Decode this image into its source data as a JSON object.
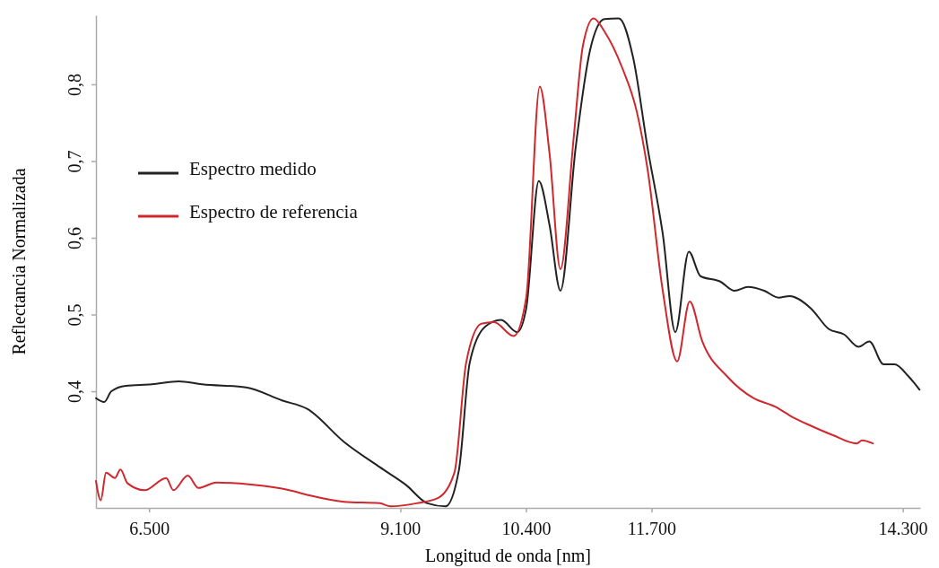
{
  "chart_data": {
    "type": "line",
    "xlabel": "Longitud de onda [nm]",
    "ylabel": "Reflectancia Normalizada",
    "xlim": [
      5950,
      14480
    ],
    "xticks": [
      {
        "value": 6500,
        "label": "6.500"
      },
      {
        "value": 9100,
        "label": "9.100"
      },
      {
        "value": 10400,
        "label": "10.400"
      },
      {
        "value": 11700,
        "label": "11.700"
      },
      {
        "value": 14300,
        "label": "14.300"
      }
    ],
    "ylim": [
      0.248,
      0.89
    ],
    "yticks": [
      {
        "value": 0.4,
        "label": "0,4"
      },
      {
        "value": 0.5,
        "label": "0,5"
      },
      {
        "value": 0.6,
        "label": "0,6"
      },
      {
        "value": 0.7,
        "label": "0,7"
      },
      {
        "value": 0.8,
        "label": "0,8"
      }
    ],
    "grid": false,
    "legend": "top left",
    "marker": "none",
    "line_style": "solid",
    "series": [
      {
        "name": "Espectro medido",
        "color": "#222222",
        "x": [
          5950,
          6035,
          6110,
          6258,
          6528,
          6807,
          7048,
          7504,
          7875,
          8136,
          8517,
          8888,
          9158,
          9381,
          9567,
          9706,
          9818,
          9976,
          10143,
          10310,
          10403,
          10533,
          10645,
          10757,
          10915,
          11063,
          11212,
          11361,
          11509,
          11658,
          11816,
          11946,
          12086,
          12206,
          12411,
          12559,
          12699,
          12866,
          13015,
          13126,
          13349,
          13535,
          13693,
          13842,
          13954,
          14102,
          14214,
          14362,
          14474
        ],
        "values": [
          0.391,
          0.386,
          0.4,
          0.407,
          0.409,
          0.413,
          0.409,
          0.405,
          0.388,
          0.377,
          0.334,
          0.301,
          0.278,
          0.254,
          0.25,
          0.297,
          0.437,
          0.484,
          0.493,
          0.477,
          0.508,
          0.674,
          0.616,
          0.531,
          0.718,
          0.844,
          0.885,
          0.886,
          0.835,
          0.718,
          0.605,
          0.477,
          0.582,
          0.55,
          0.543,
          0.531,
          0.536,
          0.531,
          0.522,
          0.524,
          0.508,
          0.481,
          0.474,
          0.458,
          0.465,
          0.435,
          0.435,
          0.419,
          0.402
        ]
      },
      {
        "name": "Espectro de referencia",
        "color": "#d0282e",
        "x": [
          5950,
          6000,
          6054,
          6147,
          6203,
          6277,
          6454,
          6677,
          6751,
          6900,
          7011,
          7197,
          7578,
          7950,
          8136,
          8517,
          8888,
          9000,
          9269,
          9492,
          9660,
          9781,
          9939,
          10069,
          10273,
          10403,
          10543,
          10645,
          10757,
          10896,
          10989,
          11100,
          11212,
          11398,
          11546,
          11658,
          11816,
          11965,
          12095,
          12225,
          12485,
          12755,
          12978,
          13163,
          13349,
          13572,
          13823,
          13879,
          13991
        ],
        "values": [
          0.283,
          0.258,
          0.294,
          0.287,
          0.298,
          0.28,
          0.271,
          0.287,
          0.271,
          0.29,
          0.274,
          0.281,
          0.278,
          0.271,
          0.265,
          0.256,
          0.254,
          0.25,
          0.254,
          0.261,
          0.294,
          0.437,
          0.488,
          0.49,
          0.472,
          0.522,
          0.797,
          0.709,
          0.559,
          0.733,
          0.85,
          0.886,
          0.869,
          0.821,
          0.765,
          0.69,
          0.531,
          0.439,
          0.517,
          0.465,
          0.419,
          0.391,
          0.38,
          0.366,
          0.355,
          0.343,
          0.332,
          0.336,
          0.332
        ]
      }
    ]
  }
}
